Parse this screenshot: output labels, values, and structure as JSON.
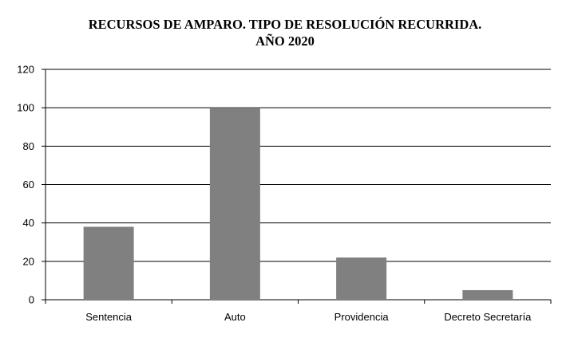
{
  "chart_data": {
    "type": "bar",
    "title": "RECURSOS DE AMPARO. TIPO DE RESOLUCIÓN RECURRIDA.",
    "subtitle": "AÑO 2020",
    "xlabel": "",
    "ylabel": "",
    "categories": [
      "Sentencia",
      "Auto",
      "Providencia",
      "Decreto Secretaría"
    ],
    "values": [
      38,
      100,
      22,
      5
    ],
    "ylim": [
      0,
      120
    ],
    "yticks": [
      0,
      20,
      40,
      60,
      80,
      100,
      120
    ],
    "grid": true,
    "legend": "none",
    "bar_color": "#808080"
  }
}
